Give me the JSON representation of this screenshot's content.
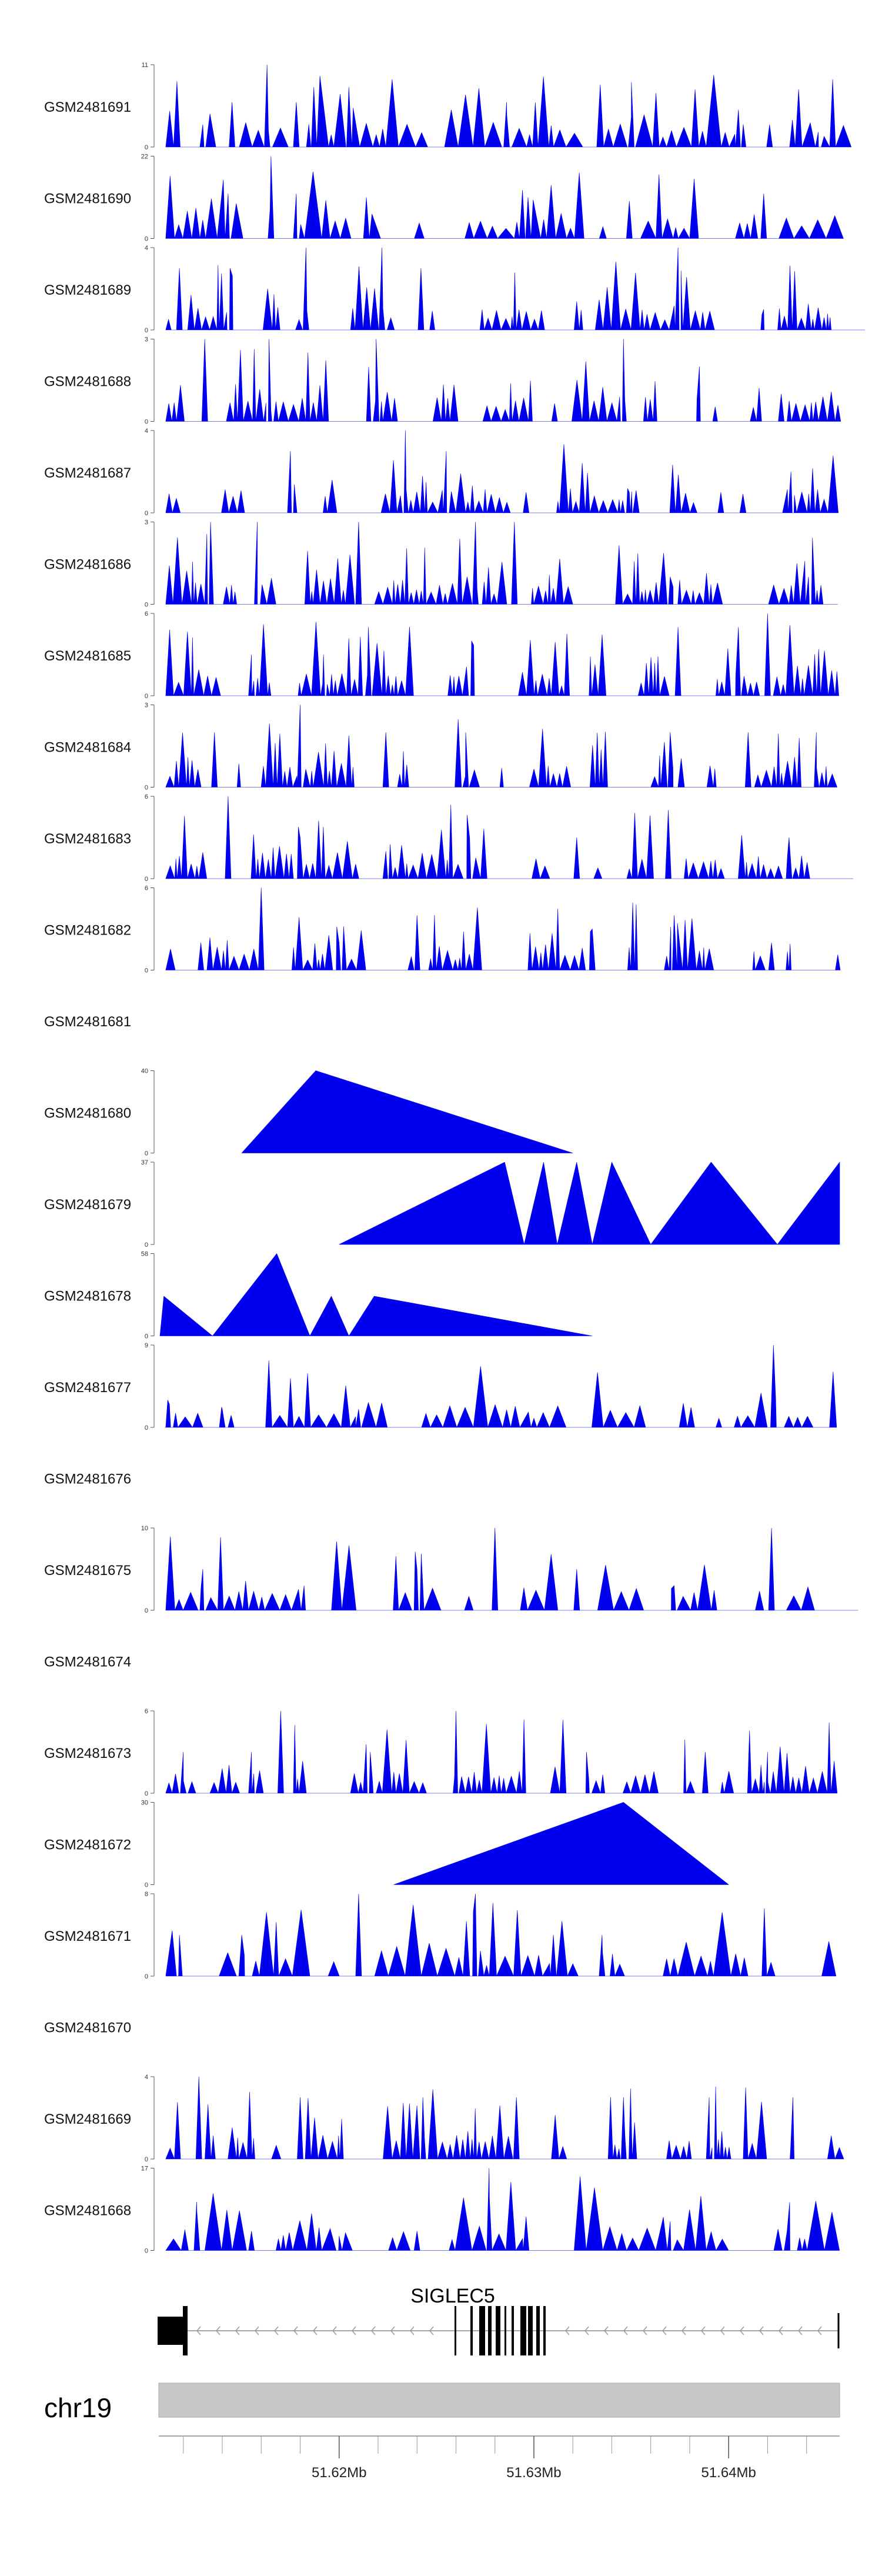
{
  "chart_data": {
    "type": "area",
    "title": "",
    "fill_color": "#0000ee",
    "chromosome": "chr19",
    "gene": {
      "name": "SIGLEC5",
      "strand": "-"
    },
    "x_axis": {
      "unit": "Mb",
      "range": [
        51.6108,
        51.6457
      ],
      "ticks": [
        {
          "value": 51.62,
          "label": "51.62Mb"
        },
        {
          "value": 51.63,
          "label": "51.63Mb"
        },
        {
          "value": 51.64,
          "label": "51.64Mb"
        }
      ]
    },
    "tracks": [
      {
        "sample": "GSM2481691",
        "ymax": 11,
        "ymax_label": "11",
        "ymin_label": "0",
        "peaks": [
          [
            51.613,
            3
          ],
          [
            51.6145,
            6
          ],
          [
            51.6163,
            11
          ],
          [
            51.6178,
            6
          ],
          [
            51.6187,
            8
          ],
          [
            51.6205,
            8
          ],
          [
            51.6286,
            6
          ],
          [
            51.635,
            4
          ],
          [
            51.6405,
            5
          ],
          [
            51.6421,
            3
          ],
          [
            51.6446,
            2
          ]
        ]
      },
      {
        "sample": "GSM2481690",
        "ymax": 22,
        "ymax_label": "22",
        "ymin_label": "0",
        "peaks": [
          [
            51.6143,
            12
          ],
          [
            51.6165,
            22
          ],
          [
            51.6178,
            12
          ],
          [
            51.6214,
            11
          ],
          [
            51.6297,
            11
          ],
          [
            51.6349,
            10
          ],
          [
            51.6418,
            12
          ]
        ]
      },
      {
        "sample": "GSM2481689",
        "ymax": 4,
        "ymax_label": "4",
        "ymin_label": "0",
        "peaks": [
          [
            51.6118,
            3
          ],
          [
            51.6144,
            3
          ],
          [
            51.6183,
            4
          ],
          [
            51.6222,
            4
          ],
          [
            51.6242,
            3
          ],
          [
            51.6374,
            4
          ],
          [
            51.6418,
            1
          ]
        ]
      },
      {
        "sample": "GSM2481688",
        "ymax": 3,
        "ymax_label": "3",
        "ymin_label": "0",
        "peaks": [
          [
            51.6131,
            3
          ],
          [
            51.6164,
            3
          ],
          [
            51.6219,
            3
          ],
          [
            51.6346,
            3
          ],
          [
            51.6385,
            2
          ],
          [
            51.6427,
            1
          ]
        ]
      },
      {
        "sample": "GSM2481687",
        "ymax": 4,
        "ymax_label": "4",
        "ymin_label": "0",
        "peaks": [
          [
            51.6175,
            3
          ],
          [
            51.6234,
            4
          ],
          [
            51.6255,
            3
          ],
          [
            51.6296,
            1
          ],
          [
            51.6349,
            1
          ],
          [
            51.6396,
            1
          ],
          [
            51.6432,
            2
          ]
        ]
      },
      {
        "sample": "GSM2481686",
        "ymax": 3,
        "ymax_label": "3",
        "ymin_label": "0",
        "peaks": [
          [
            51.6134,
            3
          ],
          [
            51.6158,
            3
          ],
          [
            51.621,
            3
          ],
          [
            51.627,
            3
          ],
          [
            51.629,
            3
          ],
          [
            51.637,
            1
          ],
          [
            51.6441,
            1
          ]
        ]
      },
      {
        "sample": "GSM2481685",
        "ymax": 6,
        "ymax_label": "6",
        "ymin_label": "0",
        "peaks": [
          [
            51.6155,
            3
          ],
          [
            51.6192,
            3
          ],
          [
            51.6215,
            5
          ],
          [
            51.6268,
            4
          ],
          [
            51.6374,
            5
          ],
          [
            51.6405,
            5
          ],
          [
            51.642,
            6
          ]
        ]
      },
      {
        "sample": "GSM2481684",
        "ymax": 3,
        "ymax_label": "3",
        "ymin_label": "0",
        "peaks": [
          [
            51.6136,
            2
          ],
          [
            51.618,
            3
          ],
          [
            51.6224,
            2
          ],
          [
            51.6265,
            2
          ],
          [
            51.637,
            2
          ],
          [
            51.641,
            2
          ],
          [
            51.6445,
            2
          ]
        ]
      },
      {
        "sample": "GSM2481683",
        "ymax": 6,
        "ymax_label": "6",
        "ymin_label": "0",
        "peaks": [
          [
            51.6143,
            6
          ],
          [
            51.618,
            3
          ],
          [
            51.6224,
            2
          ],
          [
            51.6267,
            3
          ],
          [
            51.6322,
            3
          ],
          [
            51.6369,
            5
          ],
          [
            51.6431,
            3
          ]
        ]
      },
      {
        "sample": "GSM2481682",
        "ymax": 6,
        "ymax_label": "6",
        "ymin_label": "0",
        "peaks": [
          [
            51.6129,
            2
          ],
          [
            51.616,
            6
          ],
          [
            51.62,
            2
          ],
          [
            51.624,
            4
          ],
          [
            51.633,
            3
          ],
          [
            51.6372,
            4
          ],
          [
            51.6422,
            2
          ]
        ]
      },
      {
        "sample": "GSM2481681",
        "ymax": null,
        "ymax_label": "",
        "ymin_label": "",
        "peaks": []
      },
      {
        "sample": "GSM2481680",
        "ymax": 40,
        "ymax_label": "40",
        "ymin_label": "0",
        "peaks": [
          [
            51.6188,
            40
          ]
        ]
      },
      {
        "sample": "GSM2481679",
        "ymax": 37,
        "ymax_label": "37",
        "ymin_label": "0",
        "peaks": [
          [
            51.6285,
            37
          ],
          [
            51.6305,
            37
          ],
          [
            51.6322,
            37
          ],
          [
            51.6348,
            37
          ],
          [
            51.6391,
            37
          ],
          [
            51.6445,
            37
          ]
        ]
      },
      {
        "sample": "GSM2481678",
        "ymax": 58,
        "ymax_label": "58",
        "ymin_label": "0",
        "peaks": [
          [
            51.6123,
            28
          ],
          [
            51.6168,
            58
          ],
          [
            51.6196,
            28
          ],
          [
            51.6218,
            28
          ]
        ]
      },
      {
        "sample": "GSM2481677",
        "ymax": 9,
        "ymax_label": "9",
        "ymin_label": "0",
        "peaks": [
          [
            51.6112,
            3
          ],
          [
            51.614,
            2
          ],
          [
            51.621,
            2
          ],
          [
            51.63,
            1
          ],
          [
            51.6395,
            1
          ],
          [
            51.6423,
            9
          ]
        ]
      },
      {
        "sample": "GSM2481676",
        "ymax": null,
        "ymax_label": "",
        "ymin_label": "",
        "peaks": []
      },
      {
        "sample": "GSM2481675",
        "ymax": 10,
        "ymax_label": "10",
        "ymin_label": "0",
        "peaks": [
          [
            51.613,
            5
          ],
          [
            51.6182,
            3
          ],
          [
            51.624,
            5
          ],
          [
            51.628,
            10
          ],
          [
            51.6322,
            5
          ],
          [
            51.6372,
            3
          ],
          [
            51.6422,
            10
          ]
        ]
      },
      {
        "sample": "GSM2481674",
        "ymax": null,
        "ymax_label": "",
        "ymin_label": "",
        "peaks": []
      },
      {
        "sample": "GSM2481673",
        "ymax": 6,
        "ymax_label": "6",
        "ymin_label": "0",
        "peaks": [
          [
            51.612,
            3
          ],
          [
            51.6155,
            3
          ],
          [
            51.617,
            6
          ],
          [
            51.6216,
            3
          ],
          [
            51.626,
            6
          ],
          [
            51.6327,
            3
          ],
          [
            51.6388,
            3
          ],
          [
            51.642,
            3
          ]
        ]
      },
      {
        "sample": "GSM2481672",
        "ymax": 30,
        "ymax_label": "30",
        "ymin_label": "0",
        "peaks": [
          [
            51.6346,
            30
          ]
        ]
      },
      {
        "sample": "GSM2481671",
        "ymax": 8,
        "ymax_label": "8",
        "ymin_label": "0",
        "peaks": [
          [
            51.6118,
            4
          ],
          [
            51.615,
            4
          ],
          [
            51.621,
            8
          ],
          [
            51.627,
            8
          ],
          [
            51.631,
            4
          ],
          [
            51.6335,
            4
          ]
        ]
      },
      {
        "sample": "GSM2481670",
        "ymax": null,
        "ymax_label": "",
        "ymin_label": "",
        "peaks": []
      },
      {
        "sample": "GSM2481669",
        "ymax": 4,
        "ymax_label": "4",
        "ymin_label": "0",
        "peaks": [
          [
            51.6128,
            4
          ],
          [
            51.618,
            3
          ],
          [
            51.6243,
            3
          ],
          [
            51.6291,
            3
          ],
          [
            51.6346,
            3
          ],
          [
            51.639,
            3
          ],
          [
            51.6433,
            3
          ]
        ]
      },
      {
        "sample": "GSM2481668",
        "ymax": 17,
        "ymax_label": "17",
        "ymin_label": "0",
        "peaks": [
          [
            51.6127,
            8
          ],
          [
            51.6155,
            4
          ],
          [
            51.62,
            3
          ],
          [
            51.624,
            4
          ],
          [
            51.6277,
            17
          ],
          [
            51.6296,
            7
          ],
          [
            51.637,
            6
          ],
          [
            51.643,
            4
          ]
        ]
      }
    ]
  }
}
